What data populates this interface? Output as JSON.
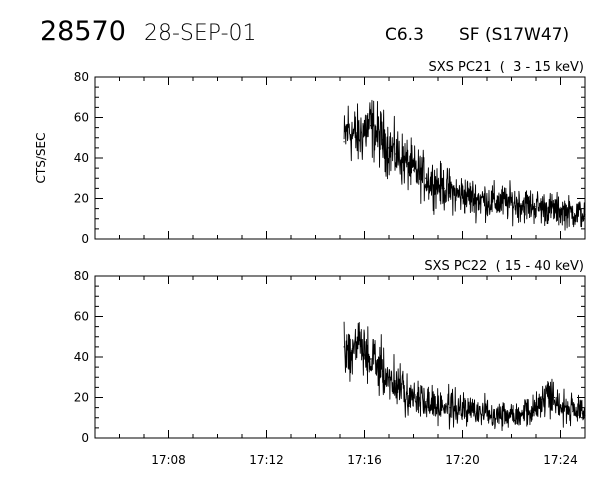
{
  "header": {
    "event_id": "28570",
    "date": "28-SEP-01",
    "flare_class": "C6.3",
    "location": "SF (S17W47)"
  },
  "chart_data": [
    {
      "type": "line",
      "title": "SXS PC21  (  3 - 15 keV)",
      "xlabel": "",
      "ylabel": "CTS/SEC",
      "xlim": [
        "17:05",
        "17:25"
      ],
      "ylim": [
        0,
        80
      ],
      "yticks": [
        0,
        20,
        40,
        60,
        80
      ],
      "xtick_labels": [],
      "grid": false,
      "series": [
        {
          "x": [
            "17:15:10",
            "17:15:20",
            "17:15:30",
            "17:15:45",
            "17:16:00",
            "17:16:15",
            "17:16:30",
            "17:16:45",
            "17:17:00",
            "17:17:15",
            "17:17:30",
            "17:17:45",
            "17:18:00",
            "17:18:15",
            "17:18:30",
            "17:18:45",
            "17:19:00",
            "17:19:15",
            "17:19:30",
            "17:19:45",
            "17:20:00",
            "17:20:30",
            "17:21:00",
            "17:21:30",
            "17:22:00",
            "17:22:30",
            "17:23:00",
            "17:23:30",
            "17:24:00",
            "17:24:30",
            "17:25:00"
          ],
          "y": [
            48,
            55,
            52,
            50,
            54,
            56,
            52,
            49,
            45,
            42,
            40,
            37,
            34,
            32,
            30,
            28,
            27,
            25,
            24,
            22,
            22,
            20,
            19,
            18,
            18,
            17,
            16,
            15,
            14,
            13,
            12
          ]
        }
      ]
    },
    {
      "type": "line",
      "title": "SXS PC22  ( 15 - 40 keV)",
      "xlabel": "",
      "ylabel": "",
      "xlim": [
        "17:05",
        "17:25"
      ],
      "ylim": [
        0,
        80
      ],
      "yticks": [
        0,
        20,
        40,
        60,
        80
      ],
      "xtick_labels": [
        "17:08",
        "17:12",
        "17:16",
        "17:20",
        "17:24"
      ],
      "grid": false,
      "series": [
        {
          "x": [
            "17:15:10",
            "17:15:20",
            "17:15:30",
            "17:15:45",
            "17:16:00",
            "17:16:15",
            "17:16:30",
            "17:16:45",
            "17:17:00",
            "17:17:15",
            "17:17:30",
            "17:17:45",
            "17:18:00",
            "17:18:30",
            "17:19:00",
            "17:19:30",
            "17:20:00",
            "17:20:30",
            "17:21:00",
            "17:21:30",
            "17:22:00",
            "17:22:30",
            "17:23:00",
            "17:23:15",
            "17:23:30",
            "17:23:45",
            "17:24:00",
            "17:24:30",
            "17:25:00"
          ],
          "y": [
            45,
            42,
            44,
            48,
            41,
            39,
            36,
            33,
            30,
            27,
            24,
            22,
            20,
            18,
            16,
            15,
            14,
            13,
            13,
            12,
            12,
            13,
            14,
            19,
            22,
            20,
            16,
            13,
            11
          ]
        }
      ]
    }
  ]
}
